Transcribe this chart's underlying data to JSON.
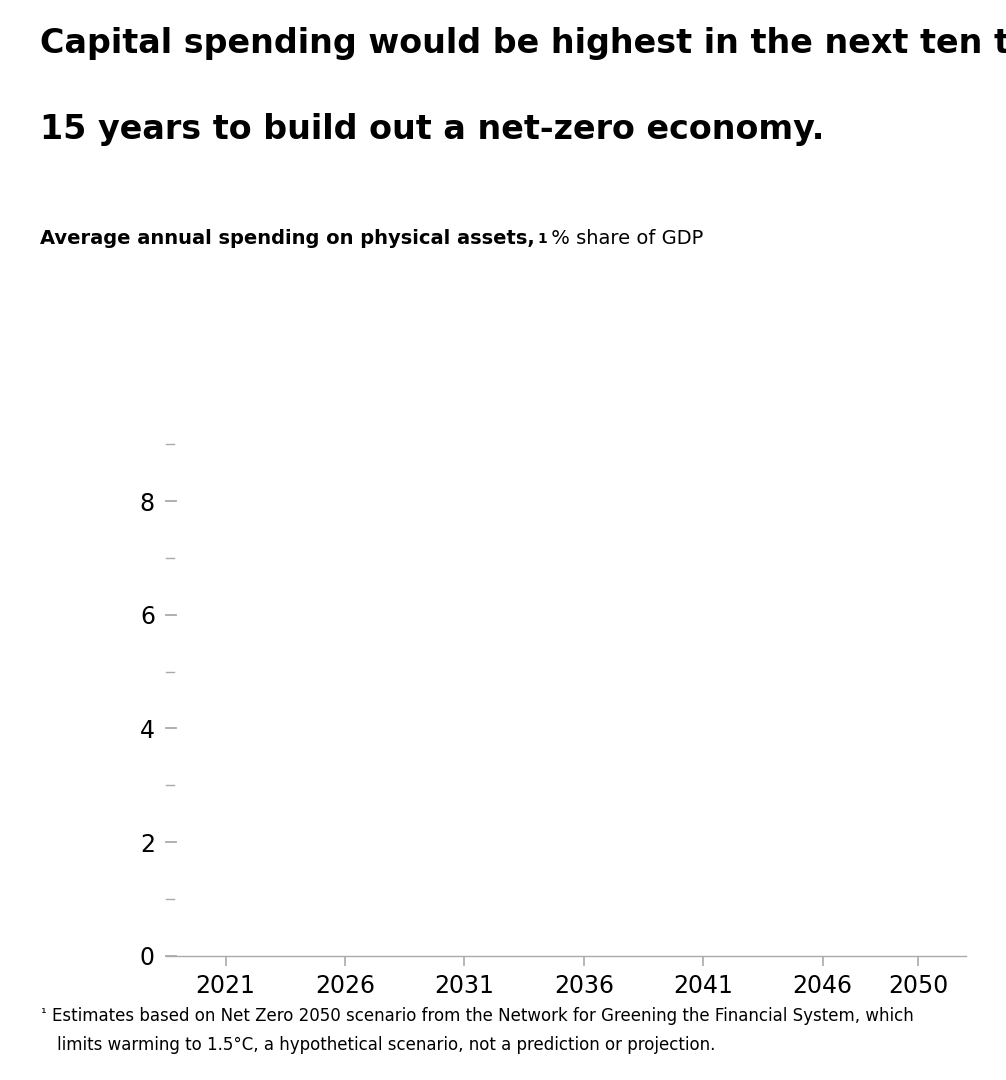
{
  "title_line1": "Capital spending would be highest in the next ten to",
  "title_line2": "15 years to build out a net-zero economy.",
  "subtitle_main": "Average annual spending on physical assets,",
  "subtitle_super": "1",
  "subtitle_suffix": " % share of GDP",
  "footnote_super": "¹",
  "footnote_line1": "Estimates based on Net Zero 2050 scenario from the Network for Greening the Financial System, which",
  "footnote_line2": "limits warming to 1.5°C, a hypothetical scenario, not a prediction or projection.",
  "x_ticks": [
    2021,
    2026,
    2031,
    2036,
    2041,
    2046,
    2050
  ],
  "y_major_ticks": [
    0,
    2,
    4,
    6,
    8
  ],
  "y_minor_ticks": [
    1,
    3,
    5,
    7,
    9
  ],
  "ylim": [
    0,
    9.5
  ],
  "xlim": [
    2018.5,
    2052
  ],
  "background_color": "#ffffff",
  "tick_color": "#aaaaaa",
  "label_color": "#000000",
  "title_fontsize": 24,
  "subtitle_fontsize": 14,
  "subtitle_suffix_fontsize": 14,
  "tick_label_fontsize": 17,
  "footnote_fontsize": 12
}
